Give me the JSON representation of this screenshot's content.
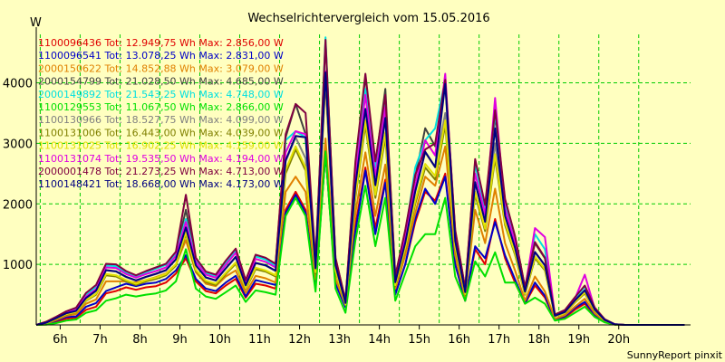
{
  "chart_data": {
    "type": "line",
    "title": "Wechselrichtervergleich vom 15.05.2016",
    "ylabel": "W",
    "footer": "SunnyReport pinxit",
    "ylim": [
      0,
      4800
    ],
    "xlim": [
      5.4,
      21.8
    ],
    "yticks": [
      1000,
      2000,
      3000,
      4000
    ],
    "xticks": [
      {
        "label": "6h",
        "value": 6
      },
      {
        "label": "7h",
        "value": 7
      },
      {
        "label": "8h",
        "value": 8
      },
      {
        "label": "9h",
        "value": 9
      },
      {
        "label": "10h",
        "value": 10
      },
      {
        "label": "11h",
        "value": 11
      },
      {
        "label": "12h",
        "value": 12
      },
      {
        "label": "13h",
        "value": 13
      },
      {
        "label": "14h",
        "value": 14
      },
      {
        "label": "15h",
        "value": 15
      },
      {
        "label": "16h",
        "value": 16
      },
      {
        "label": "17h",
        "value": 17
      },
      {
        "label": "18h",
        "value": 18
      },
      {
        "label": "19h",
        "value": 19
      },
      {
        "label": "20h",
        "value": 20
      }
    ],
    "grid": true,
    "legend_position": "top-left",
    "x": [
      5.4,
      5.65,
      5.9,
      6.15,
      6.4,
      6.65,
      6.9,
      7.15,
      7.4,
      7.65,
      7.9,
      8.15,
      8.4,
      8.65,
      8.9,
      9.15,
      9.4,
      9.65,
      9.9,
      10.15,
      10.4,
      10.65,
      10.9,
      11.15,
      11.4,
      11.65,
      11.9,
      12.15,
      12.4,
      12.65,
      12.9,
      13.15,
      13.4,
      13.65,
      13.9,
      14.15,
      14.4,
      14.65,
      14.9,
      15.15,
      15.4,
      15.65,
      15.9,
      16.15,
      16.4,
      16.65,
      16.9,
      17.15,
      17.4,
      17.65,
      17.9,
      18.15,
      18.4,
      18.65,
      18.9,
      19.15,
      19.4,
      19.65,
      19.9,
      20.15,
      20.4,
      20.65,
      20.9,
      21.15,
      21.4,
      21.65
    ],
    "series": [
      {
        "name": "1100096436 Tot: 12.949,75 Wh Max: 2.856,00 W",
        "color": "#E00000",
        "values": [
          0,
          10,
          50,
          100,
          120,
          250,
          300,
          520,
          560,
          620,
          580,
          620,
          640,
          700,
          850,
          1100,
          720,
          560,
          520,
          650,
          760,
          450,
          680,
          650,
          600,
          1900,
          2200,
          1900,
          650,
          2850,
          700,
          300,
          1650,
          2600,
          1600,
          2400,
          520,
          1000,
          1700,
          2200,
          2050,
          2500,
          1000,
          400,
          1250,
          1000,
          1750,
          1100,
          700,
          350,
          650,
          450,
          80,
          120,
          250,
          350,
          150,
          50,
          5,
          0,
          0,
          0,
          0,
          0,
          0,
          0
        ]
      },
      {
        "name": "1100096541 Tot: 13.078,25 Wh Max: 2.831,00 W",
        "color": "#0000C8",
        "values": [
          0,
          15,
          70,
          130,
          140,
          300,
          360,
          560,
          620,
          680,
          640,
          680,
          700,
          760,
          900,
          1150,
          760,
          600,
          560,
          700,
          810,
          470,
          740,
          700,
          660,
          1850,
          2150,
          1850,
          650,
          2830,
          680,
          290,
          1550,
          2550,
          1500,
          2350,
          500,
          1000,
          1750,
          2250,
          2000,
          2450,
          1000,
          400,
          1300,
          1100,
          1700,
          1150,
          750,
          360,
          700,
          480,
          90,
          140,
          280,
          380,
          170,
          55,
          5,
          0,
          0,
          0,
          0,
          0,
          0,
          0
        ]
      },
      {
        "name": "2000150622 Tot: 14.852,88 Wh Max: 3.079,00 W",
        "color": "#E08000",
        "values": [
          0,
          20,
          80,
          150,
          180,
          350,
          420,
          720,
          720,
          720,
          700,
          740,
          790,
          850,
          1000,
          1400,
          870,
          680,
          640,
          800,
          900,
          530,
          810,
          770,
          700,
          2200,
          2450,
          2200,
          750,
          3080,
          760,
          330,
          1850,
          2850,
          1800,
          2650,
          600,
          1150,
          1850,
          2450,
          2300,
          2950,
          1150,
          450,
          1900,
          1350,
          2250,
          1350,
          900,
          400,
          800,
          550,
          100,
          160,
          300,
          430,
          190,
          60,
          6,
          0,
          0,
          0,
          0,
          0,
          0,
          0
        ]
      },
      {
        "name": "2000154799 Tot: 21.028,50 Wh Max: 4.685,00 W",
        "color": "#404040",
        "values": [
          0,
          50,
          130,
          220,
          280,
          520,
          650,
          1000,
          990,
          880,
          810,
          880,
          940,
          1000,
          1200,
          1900,
          1100,
          870,
          820,
          1050,
          1250,
          730,
          1150,
          1100,
          1000,
          3100,
          3650,
          3150,
          1050,
          4680,
          1100,
          400,
          2650,
          4100,
          2650,
          3900,
          800,
          1550,
          2450,
          3250,
          2950,
          4000,
          1550,
          600,
          2700,
          1950,
          3450,
          2050,
          1450,
          620,
          1350,
          1100,
          170,
          240,
          450,
          640,
          280,
          90,
          10,
          0,
          0,
          0,
          0,
          0,
          0,
          0
        ]
      },
      {
        "name": "2000149892 Tot: 21.543,25 Wh Max: 4.748,00 W",
        "color": "#00E0E0",
        "values": [
          0,
          45,
          120,
          210,
          270,
          500,
          630,
          980,
          970,
          870,
          800,
          870,
          930,
          990,
          1180,
          1750,
          1080,
          860,
          810,
          1030,
          1230,
          720,
          1130,
          1080,
          980,
          3050,
          3200,
          3100,
          1030,
          4750,
          1080,
          390,
          2600,
          3900,
          2600,
          3700,
          780,
          1500,
          2600,
          3050,
          3250,
          4050,
          1520,
          590,
          2650,
          1920,
          3500,
          2000,
          1420,
          610,
          1500,
          1250,
          160,
          230,
          440,
          630,
          270,
          88,
          10,
          0,
          0,
          0,
          0,
          0,
          0,
          0
        ]
      },
      {
        "name": "1100129553 Tot: 11.067,50 Wh Max: 2.866,00 W",
        "color": "#00E000",
        "values": [
          0,
          5,
          30,
          70,
          90,
          200,
          240,
          400,
          440,
          500,
          470,
          500,
          520,
          570,
          720,
          1250,
          600,
          470,
          430,
          540,
          650,
          380,
          570,
          540,
          500,
          1800,
          2100,
          1800,
          550,
          2866,
          600,
          200,
          1400,
          2300,
          1300,
          2100,
          400,
          850,
          1300,
          1500,
          1500,
          2100,
          800,
          400,
          1050,
          800,
          1200,
          700,
          700,
          350,
          450,
          350,
          70,
          100,
          200,
          300,
          130,
          40,
          4,
          0,
          0,
          0,
          0,
          0,
          0,
          0
        ]
      },
      {
        "name": "1100130966 Tot: 18.527,75 Wh Max: 4.099,00 W",
        "color": "#808080",
        "values": [
          0,
          35,
          110,
          190,
          230,
          440,
          560,
          900,
          880,
          790,
          730,
          790,
          840,
          900,
          1080,
          1600,
          980,
          780,
          730,
          930,
          1120,
          650,
          1020,
          980,
          890,
          2700,
          3100,
          2750,
          930,
          4100,
          980,
          360,
          2300,
          3550,
          2300,
          3400,
          700,
          1350,
          2200,
          2850,
          2600,
          3500,
          1380,
          540,
          2350,
          1700,
          3000,
          1800,
          1270,
          550,
          1200,
          980,
          150,
          210,
          400,
          570,
          250,
          80,
          9,
          0,
          0,
          0,
          0,
          0,
          0,
          0
        ]
      },
      {
        "name": "1100131006 Tot: 16.443,00 Wh Max: 4.039,00 W",
        "color": "#808000",
        "values": [
          0,
          30,
          100,
          170,
          210,
          400,
          500,
          820,
          800,
          720,
          660,
          720,
          760,
          820,
          980,
          1500,
          890,
          710,
          660,
          840,
          1010,
          590,
          920,
          880,
          800,
          2500,
          2900,
          2550,
          850,
          4040,
          880,
          330,
          2100,
          3300,
          2100,
          3100,
          640,
          1250,
          2000,
          2600,
          2400,
          3300,
          1260,
          500,
          2150,
          1550,
          2750,
          1650,
          1160,
          500,
          1100,
          900,
          140,
          190,
          370,
          520,
          230,
          75,
          8,
          0,
          0,
          0,
          0,
          0,
          0,
          0
        ]
      },
      {
        "name": "1100131025 Tot: 16.902,25 Wh Max: 4.159,00 W",
        "color": "#E0E000",
        "values": [
          0,
          32,
          104,
          176,
          216,
          410,
          515,
          840,
          820,
          740,
          680,
          740,
          780,
          840,
          1000,
          1530,
          910,
          730,
          680,
          860,
          1030,
          605,
          945,
          900,
          820,
          2560,
          2950,
          2600,
          870,
          4160,
          900,
          335,
          2150,
          3380,
          2150,
          3180,
          655,
          1280,
          2050,
          2660,
          2460,
          3380,
          1290,
          510,
          2200,
          1590,
          2820,
          1690,
          1190,
          515,
          1130,
          920,
          143,
          195,
          380,
          535,
          235,
          77,
          8,
          0,
          0,
          0,
          0,
          0,
          0,
          0
        ]
      },
      {
        "name": "1100131074 Tot: 19.535,50 Wh Max: 4.194,00 W",
        "color": "#E000E0",
        "values": [
          0,
          40,
          115,
          200,
          250,
          470,
          590,
          950,
          940,
          840,
          780,
          840,
          890,
          950,
          1140,
          1700,
          1040,
          830,
          780,
          990,
          1190,
          700,
          1090,
          1040,
          950,
          2850,
          3200,
          3150,
          990,
          4190,
          1040,
          380,
          2450,
          3800,
          2450,
          3600,
          750,
          1450,
          2300,
          3050,
          2800,
          4150,
          1470,
          575,
          2500,
          1820,
          3750,
          1920,
          1360,
          590,
          1600,
          1450,
          160,
          225,
          430,
          830,
          265,
          85,
          10,
          0,
          0,
          0,
          0,
          0,
          0,
          0
        ]
      },
      {
        "name": "2000001478 Tot: 21.273,25 Wh Max: 4.713,00 W",
        "color": "#800040",
        "values": [
          0,
          52,
          135,
          225,
          285,
          530,
          660,
          1010,
          1000,
          890,
          820,
          890,
          950,
          1010,
          1210,
          2150,
          1110,
          880,
          830,
          1060,
          1260,
          740,
          1160,
          1110,
          1010,
          3150,
          3650,
          3500,
          1060,
          4710,
          1110,
          405,
          2700,
          4150,
          2700,
          3800,
          810,
          1570,
          2480,
          2900,
          3000,
          4050,
          1570,
          605,
          2740,
          1980,
          3550,
          2080,
          1470,
          625,
          1370,
          1110,
          172,
          245,
          455,
          650,
          285,
          92,
          10,
          0,
          0,
          0,
          0,
          0,
          0,
          0
        ]
      },
      {
        "name": "1100148421 Tot: 18.668,00 Wh Max: 4.173,00 W",
        "color": "#000080",
        "values": [
          0,
          36,
          112,
          192,
          232,
          445,
          565,
          905,
          885,
          795,
          735,
          795,
          845,
          905,
          1085,
          1610,
          985,
          785,
          735,
          935,
          1125,
          655,
          1025,
          985,
          895,
          2720,
          3120,
          3100,
          935,
          4170,
          985,
          362,
          2310,
          3570,
          2310,
          3420,
          705,
          1360,
          2210,
          2860,
          2610,
          3980,
          1385,
          542,
          2360,
          1705,
          3250,
          1805,
          1275,
          552,
          1205,
          985,
          151,
          212,
          402,
          572,
          252,
          81,
          9,
          0,
          0,
          0,
          0,
          0,
          0,
          0
        ]
      }
    ]
  }
}
